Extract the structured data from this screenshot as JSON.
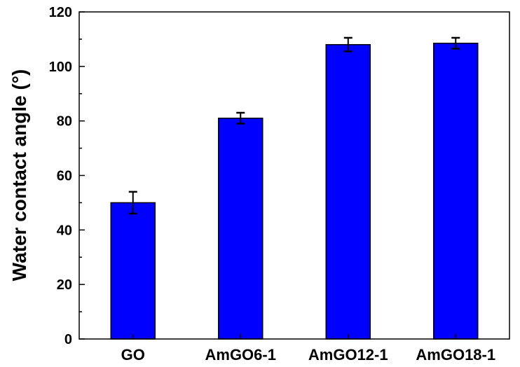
{
  "chart_data": {
    "type": "bar",
    "title": "",
    "xlabel": "",
    "ylabel": "Water contact angle (°)",
    "categories": [
      "GO",
      "AmGO6-1",
      "AmGO12-1",
      "AmGO18-1"
    ],
    "values": [
      50,
      81,
      108,
      108.5
    ],
    "errors": [
      4,
      2,
      2.5,
      2
    ],
    "ylim": [
      0,
      120
    ],
    "yticks": [
      "0",
      "20",
      "40",
      "60",
      "80",
      "100",
      "120"
    ],
    "grid": false,
    "legend": "none",
    "bar_color": "#0000ff",
    "edge_color": "#000000"
  }
}
